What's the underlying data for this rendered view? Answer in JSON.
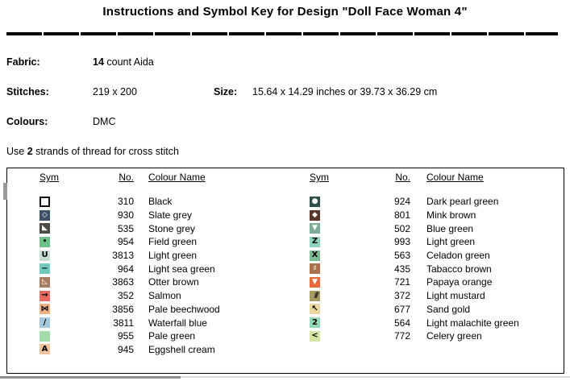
{
  "page": {
    "title": "Instructions and Symbol Key for Design \"Doll Face Woman 4\""
  },
  "info": {
    "fabric": {
      "label": "Fabric:",
      "count": "14",
      "rest": " count Aida"
    },
    "stitches": {
      "label": "Stitches:",
      "value": "219 x 200"
    },
    "size": {
      "label": "Size:",
      "value": "15.64 x 14.29 inches or 39.73 x 36.29 cm"
    },
    "colours": {
      "label": "Colours:",
      "value": "DMC"
    },
    "strands": {
      "prefix": "Use ",
      "count": "2",
      "suffix": " strands of thread for cross stitch"
    }
  },
  "key_table": {
    "headers": {
      "sym": "Sym",
      "no": "No.",
      "name": "Colour Name"
    },
    "left_rows": [
      {
        "no": "310",
        "name": "Black",
        "glyph": "",
        "bg": "#ffffff",
        "fg": "#000000",
        "outline": true,
        "cls": ""
      },
      {
        "no": "930",
        "name": "Slate grey",
        "glyph": "◇",
        "bg": "#3d5266",
        "fg": "#ffffff",
        "outline": false,
        "cls": "shape"
      },
      {
        "no": "535",
        "name": "Stone grey",
        "glyph": "◣",
        "bg": "#4d4b46",
        "fg": "#ffffff",
        "outline": false,
        "cls": "shape"
      },
      {
        "no": "954",
        "name": "Field green",
        "glyph": "•",
        "bg": "#6cc08a",
        "fg": "#000000",
        "outline": false,
        "cls": "dot"
      },
      {
        "no": "3813",
        "name": "Light green",
        "glyph": "U",
        "bg": "#c6dcd2",
        "fg": "#000000",
        "outline": false,
        "cls": ""
      },
      {
        "no": "964",
        "name": "Light sea green",
        "glyph": "−",
        "bg": "#72cabe",
        "fg": "#000000",
        "outline": false,
        "cls": ""
      },
      {
        "no": "3863",
        "name": "Otter brown",
        "glyph": "◺",
        "bg": "#a87c5e",
        "fg": "#ffffff",
        "outline": false,
        "cls": "shape"
      },
      {
        "no": "352",
        "name": "Salmon",
        "glyph": "→",
        "bg": "#e9695f",
        "fg": "#000000",
        "outline": false,
        "cls": ""
      },
      {
        "no": "3856",
        "name": "Pale beechwood",
        "glyph": "⋈",
        "bg": "#efb084",
        "fg": "#000000",
        "outline": false,
        "cls": ""
      },
      {
        "no": "3811",
        "name": "Waterfall blue",
        "glyph": "/",
        "bg": "#a5c9dd",
        "fg": "#000000",
        "outline": false,
        "cls": ""
      },
      {
        "no": "955",
        "name": "Pale green",
        "glyph": "",
        "bg": "#a3dcab",
        "fg": "#000000",
        "outline": false,
        "cls": ""
      },
      {
        "no": "945",
        "name": "Eggshell cream",
        "glyph": "A",
        "bg": "#f1c29e",
        "fg": "#000000",
        "outline": false,
        "cls": ""
      }
    ],
    "right_rows": [
      {
        "no": "924",
        "name": "Dark pearl green",
        "glyph": "●",
        "bg": "#31504c",
        "fg": "#ffffff",
        "outline": false,
        "cls": "shape"
      },
      {
        "no": "801",
        "name": "Mink brown",
        "glyph": "◆",
        "bg": "#58372b",
        "fg": "#ffffff",
        "outline": false,
        "cls": "shape"
      },
      {
        "no": "502",
        "name": "Blue green",
        "glyph": "▼",
        "bg": "#7cab97",
        "fg": "#ffffff",
        "outline": false,
        "cls": "shape"
      },
      {
        "no": "993",
        "name": "Light green",
        "glyph": "Z",
        "bg": "#8ed3be",
        "fg": "#000000",
        "outline": false,
        "cls": ""
      },
      {
        "no": "563",
        "name": "Celadon green",
        "glyph": "X",
        "bg": "#7cbb94",
        "fg": "#000000",
        "outline": false,
        "cls": ""
      },
      {
        "no": "435",
        "name": "Tabacco brown",
        "glyph": "♯",
        "bg": "#a8714c",
        "fg": "#ffffff",
        "outline": false,
        "cls": ""
      },
      {
        "no": "721",
        "name": "Papaya orange",
        "glyph": "▼",
        "bg": "#e7693c",
        "fg": "#ffffff",
        "outline": false,
        "cls": "shape"
      },
      {
        "no": "372",
        "name": "Light mustard",
        "glyph": "///",
        "bg": "#a59a61",
        "fg": "#1a1a1a",
        "outline": false,
        "cls": "hatch"
      },
      {
        "no": "677",
        "name": "Sand gold",
        "glyph": "↖",
        "bg": "#e9d79f",
        "fg": "#000000",
        "outline": false,
        "cls": ""
      },
      {
        "no": "564",
        "name": "Light malachite green",
        "glyph": "2",
        "bg": "#93d8b4",
        "fg": "#000000",
        "outline": false,
        "cls": ""
      },
      {
        "no": "772",
        "name": "Celery green",
        "glyph": "<",
        "bg": "#d3e5a6",
        "fg": "#000000",
        "outline": false,
        "cls": ""
      }
    ]
  }
}
